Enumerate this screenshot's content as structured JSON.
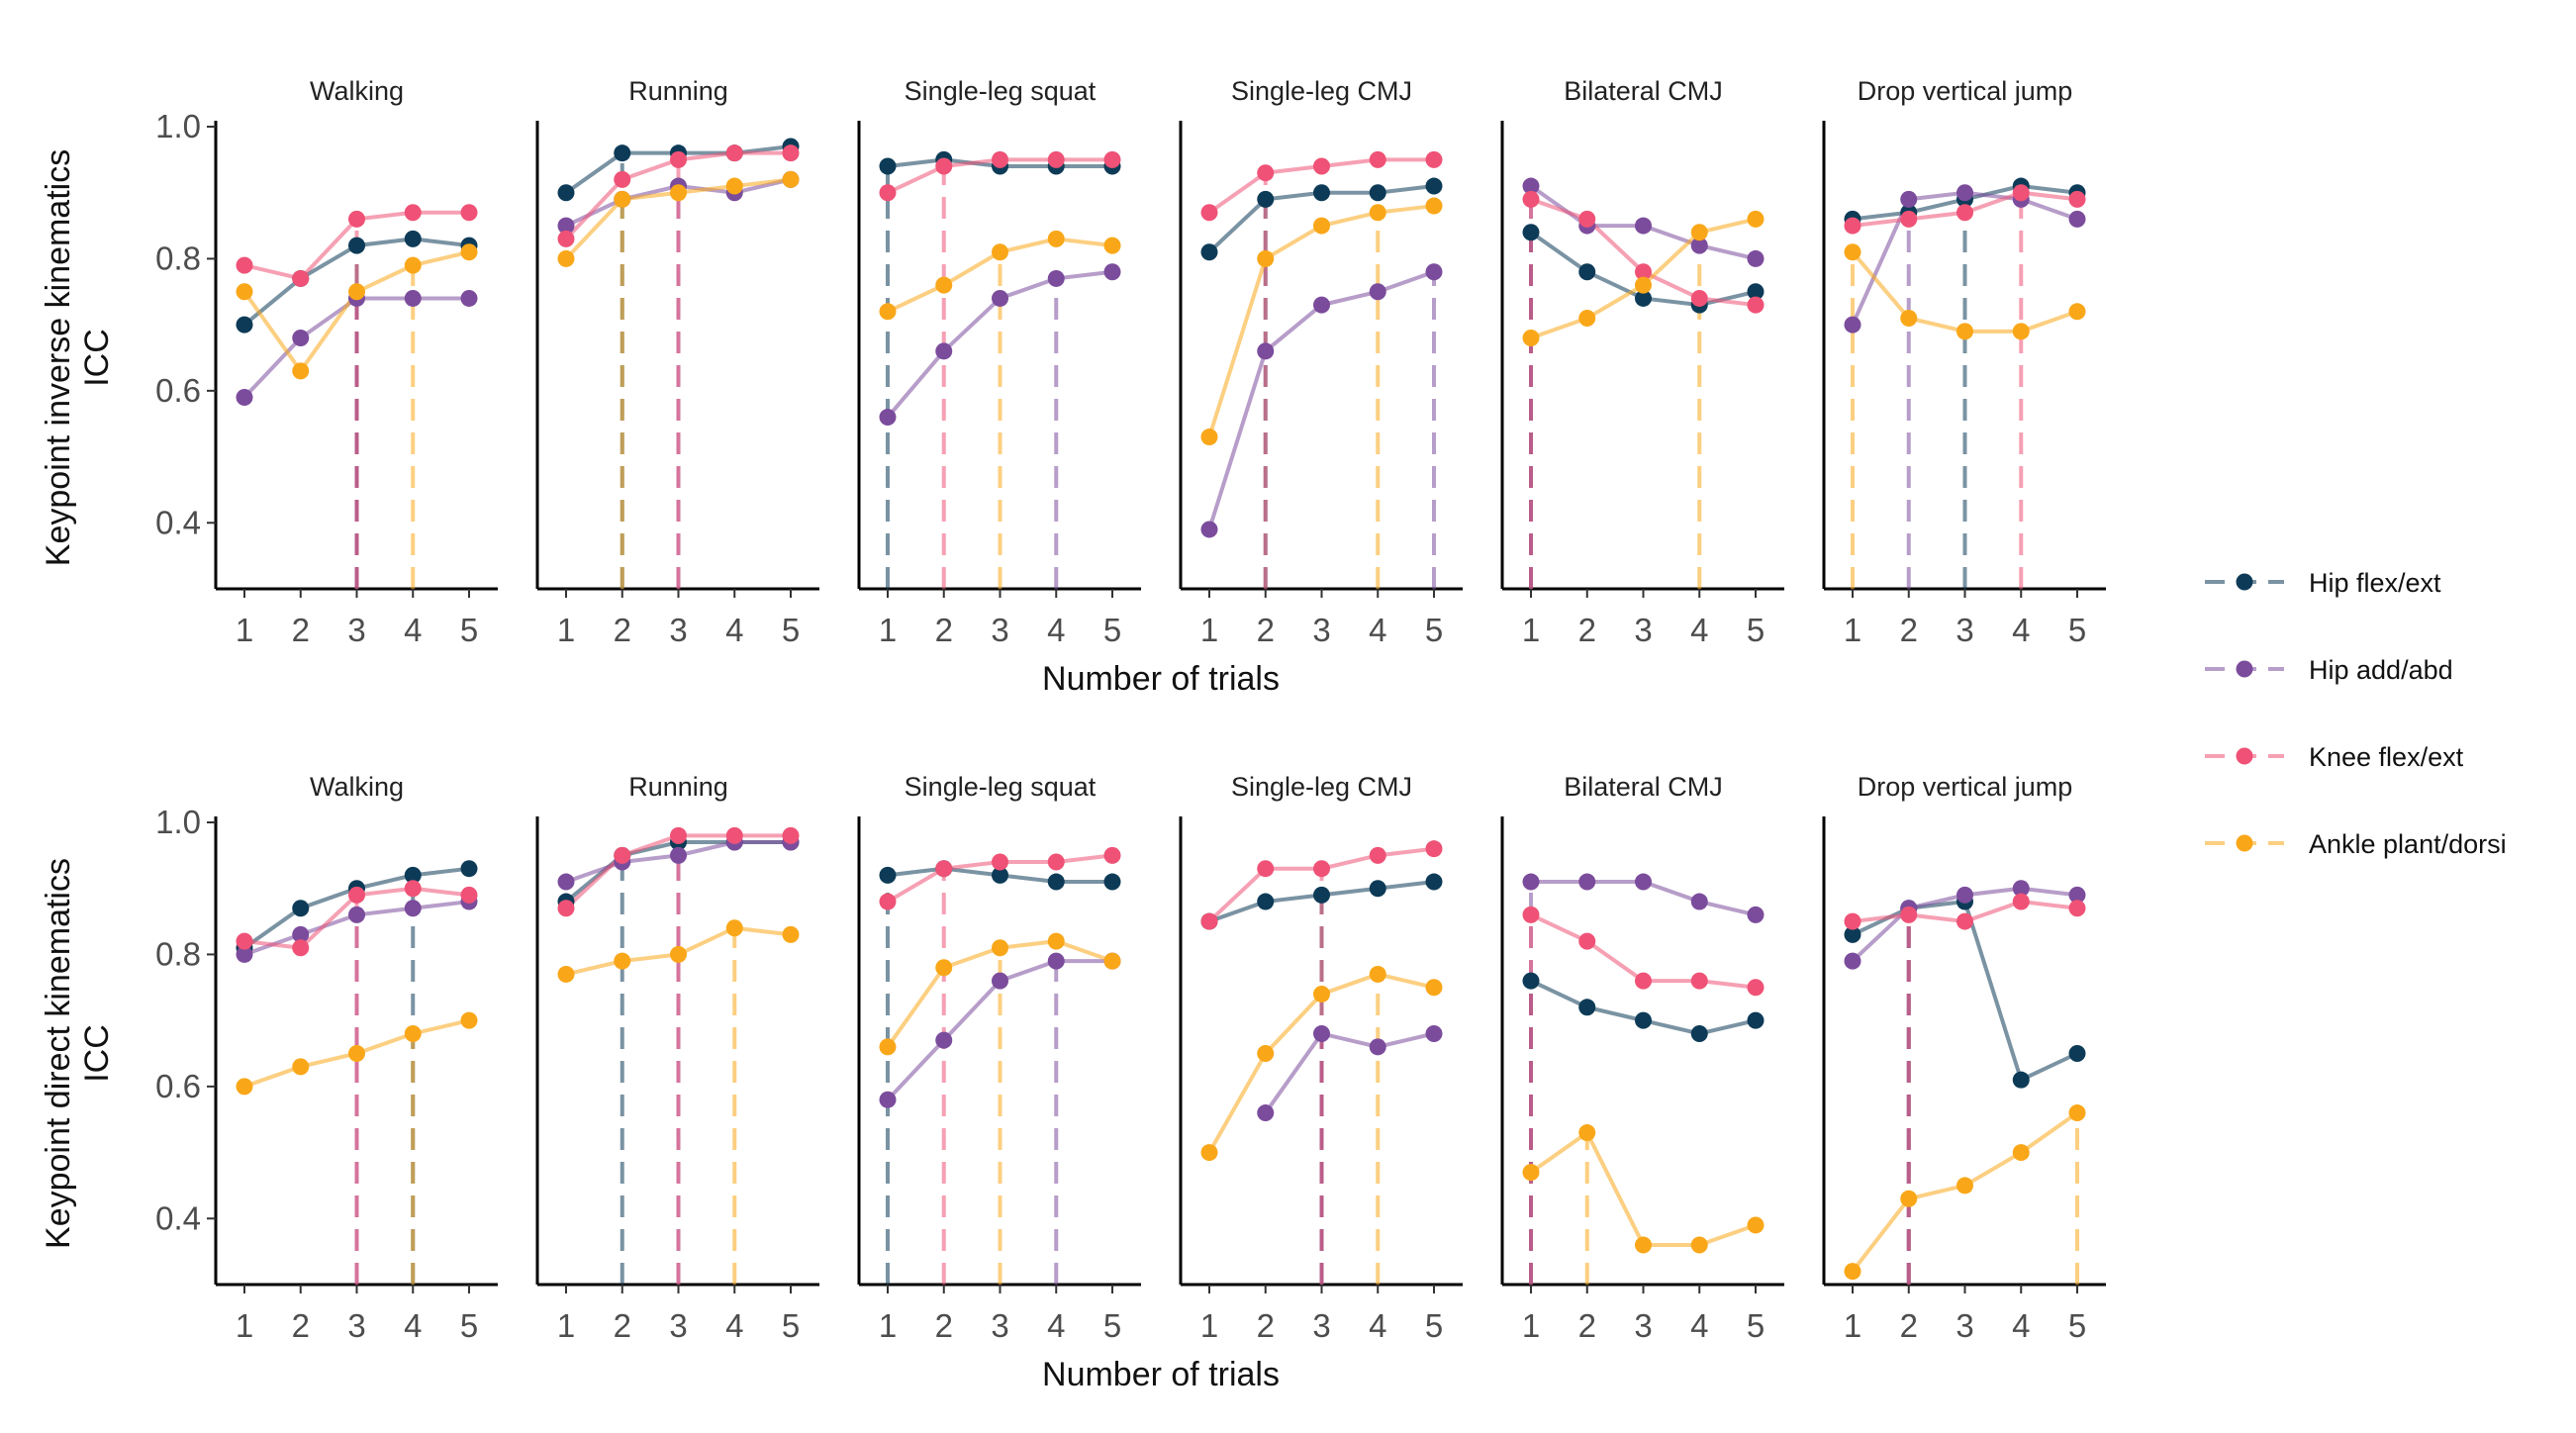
{
  "chart_data": {
    "type": "line",
    "panels": [
      "Walking",
      "Running",
      "Single-leg squat",
      "Single-leg CMJ",
      "Bilateral CMJ",
      "Drop vertical jump"
    ],
    "x": [
      1,
      2,
      3,
      4,
      5
    ],
    "xticks": [
      "1",
      "2",
      "3",
      "4",
      "5"
    ],
    "xlabel": "Number of trials",
    "ylim": [
      0.3,
      1.0
    ],
    "yticks": [
      "0.4",
      "0.6",
      "0.8",
      "1.0"
    ],
    "ytick_values": [
      0.4,
      0.6,
      0.8,
      1.0
    ],
    "grid": false,
    "legend_position": "right",
    "series_names": [
      "Hip flex/ext",
      "Hip add/abd",
      "Knee flex/ext",
      "Ankle plant/dorsi"
    ],
    "colors": {
      "Hip flex/ext": "#0d3b57",
      "Hip add/abd": "#7b4c9c",
      "Knee flex/ext": "#ef5276",
      "Ankle plant/dorsi": "#f9a719"
    },
    "rows": [
      {
        "ylabel": [
          "Keypoint inverse kinematics",
          "ICC"
        ],
        "panels": [
          {
            "title": "Walking",
            "series": [
              {
                "name": "Hip flex/ext",
                "values": [
                  0.7,
                  0.77,
                  0.82,
                  0.83,
                  0.82
                ],
                "threshold": 3
              },
              {
                "name": "Hip add/abd",
                "values": [
                  0.59,
                  0.68,
                  0.74,
                  0.74,
                  0.74
                ],
                "threshold": 3
              },
              {
                "name": "Knee flex/ext",
                "values": [
                  0.79,
                  0.77,
                  0.86,
                  0.87,
                  0.87
                ],
                "threshold": 3
              },
              {
                "name": "Ankle plant/dorsi",
                "values": [
                  0.75,
                  0.63,
                  0.75,
                  0.79,
                  0.81
                ],
                "threshold": 4
              }
            ]
          },
          {
            "title": "Running",
            "series": [
              {
                "name": "Hip flex/ext",
                "values": [
                  0.9,
                  0.96,
                  0.96,
                  0.96,
                  0.97
                ],
                "threshold": 2
              },
              {
                "name": "Hip add/abd",
                "values": [
                  0.85,
                  0.89,
                  0.91,
                  0.9,
                  0.92
                ],
                "threshold": 3
              },
              {
                "name": "Knee flex/ext",
                "values": [
                  0.83,
                  0.92,
                  0.95,
                  0.96,
                  0.96
                ],
                "threshold": 3
              },
              {
                "name": "Ankle plant/dorsi",
                "values": [
                  0.8,
                  0.89,
                  0.9,
                  0.91,
                  0.92
                ],
                "threshold": 2
              }
            ]
          },
          {
            "title": "Single-leg squat",
            "series": [
              {
                "name": "Hip flex/ext",
                "values": [
                  0.94,
                  0.95,
                  0.94,
                  0.94,
                  0.94
                ],
                "threshold": 1
              },
              {
                "name": "Hip add/abd",
                "values": [
                  0.56,
                  0.66,
                  0.74,
                  0.77,
                  0.78
                ],
                "threshold": 4
              },
              {
                "name": "Knee flex/ext",
                "values": [
                  0.9,
                  0.94,
                  0.95,
                  0.95,
                  0.95
                ],
                "threshold": 2
              },
              {
                "name": "Ankle plant/dorsi",
                "values": [
                  0.72,
                  0.76,
                  0.81,
                  0.83,
                  0.82
                ],
                "threshold": 3
              }
            ]
          },
          {
            "title": "Single-leg CMJ",
            "series": [
              {
                "name": "Hip flex/ext",
                "values": [
                  0.81,
                  0.89,
                  0.9,
                  0.9,
                  0.91
                ],
                "threshold": 2
              },
              {
                "name": "Hip add/abd",
                "values": [
                  0.39,
                  0.66,
                  0.73,
                  0.75,
                  0.78
                ],
                "threshold": 5
              },
              {
                "name": "Knee flex/ext",
                "values": [
                  0.87,
                  0.93,
                  0.94,
                  0.95,
                  0.95
                ],
                "threshold": 2
              },
              {
                "name": "Ankle plant/dorsi",
                "values": [
                  0.53,
                  0.8,
                  0.85,
                  0.87,
                  0.88
                ],
                "threshold": 4
              }
            ]
          },
          {
            "title": "Bilateral CMJ",
            "series": [
              {
                "name": "Hip flex/ext",
                "values": [
                  0.84,
                  0.78,
                  0.74,
                  0.73,
                  0.75
                ],
                "threshold": 1
              },
              {
                "name": "Hip add/abd",
                "values": [
                  0.91,
                  0.85,
                  0.85,
                  0.82,
                  0.8
                ],
                "threshold": 1
              },
              {
                "name": "Knee flex/ext",
                "values": [
                  0.89,
                  0.86,
                  0.78,
                  0.74,
                  0.73
                ],
                "threshold": 1
              },
              {
                "name": "Ankle plant/dorsi",
                "values": [
                  0.68,
                  0.71,
                  0.76,
                  0.84,
                  0.86
                ],
                "threshold": 4
              }
            ]
          },
          {
            "title": "Drop vertical jump",
            "series": [
              {
                "name": "Hip flex/ext",
                "values": [
                  0.86,
                  0.87,
                  0.89,
                  0.91,
                  0.9
                ],
                "threshold": 3
              },
              {
                "name": "Hip add/abd",
                "values": [
                  0.7,
                  0.89,
                  0.9,
                  0.89,
                  0.86
                ],
                "threshold": 2
              },
              {
                "name": "Knee flex/ext",
                "values": [
                  0.85,
                  0.86,
                  0.87,
                  0.9,
                  0.89
                ],
                "threshold": 4
              },
              {
                "name": "Ankle plant/dorsi",
                "values": [
                  0.81,
                  0.71,
                  0.69,
                  0.69,
                  0.72
                ],
                "threshold": 1
              }
            ]
          }
        ]
      },
      {
        "ylabel": [
          "Keypoint direct kinematics",
          "ICC"
        ],
        "panels": [
          {
            "title": "Walking",
            "series": [
              {
                "name": "Hip flex/ext",
                "values": [
                  0.81,
                  0.87,
                  0.9,
                  0.92,
                  0.93
                ],
                "threshold": 4
              },
              {
                "name": "Hip add/abd",
                "values": [
                  0.8,
                  0.83,
                  0.86,
                  0.87,
                  0.88
                ],
                "threshold": 3
              },
              {
                "name": "Knee flex/ext",
                "values": [
                  0.82,
                  0.81,
                  0.89,
                  0.9,
                  0.89
                ],
                "threshold": 3
              },
              {
                "name": "Ankle plant/dorsi",
                "values": [
                  0.6,
                  0.63,
                  0.65,
                  0.68,
                  0.7
                ],
                "threshold": 4
              }
            ]
          },
          {
            "title": "Running",
            "series": [
              {
                "name": "Hip flex/ext",
                "values": [
                  0.88,
                  0.95,
                  0.97,
                  0.97,
                  0.97
                ],
                "threshold": 2
              },
              {
                "name": "Hip add/abd",
                "values": [
                  0.91,
                  0.94,
                  0.95,
                  0.97,
                  0.97
                ],
                "threshold": 3
              },
              {
                "name": "Knee flex/ext",
                "values": [
                  0.87,
                  0.95,
                  0.98,
                  0.98,
                  0.98
                ],
                "threshold": 3
              },
              {
                "name": "Ankle plant/dorsi",
                "values": [
                  0.77,
                  0.79,
                  0.8,
                  0.84,
                  0.83
                ],
                "threshold": 4
              }
            ]
          },
          {
            "title": "Single-leg squat",
            "series": [
              {
                "name": "Hip flex/ext",
                "values": [
                  0.92,
                  0.93,
                  0.92,
                  0.91,
                  0.91
                ],
                "threshold": 1
              },
              {
                "name": "Hip add/abd",
                "values": [
                  0.58,
                  0.67,
                  0.76,
                  0.79,
                  0.79
                ],
                "threshold": 4
              },
              {
                "name": "Knee flex/ext",
                "values": [
                  0.88,
                  0.93,
                  0.94,
                  0.94,
                  0.95
                ],
                "threshold": 2
              },
              {
                "name": "Ankle plant/dorsi",
                "values": [
                  0.66,
                  0.78,
                  0.81,
                  0.82,
                  0.79
                ],
                "threshold": 3
              }
            ]
          },
          {
            "title": "Single-leg CMJ",
            "series": [
              {
                "name": "Hip flex/ext",
                "values": [
                  0.85,
                  0.88,
                  0.89,
                  0.9,
                  0.91
                ],
                "threshold": 3
              },
              {
                "name": "Hip add/abd",
                "values": [
                  null,
                  0.56,
                  0.68,
                  0.66,
                  0.68
                ],
                "threshold": 3
              },
              {
                "name": "Knee flex/ext",
                "values": [
                  0.85,
                  0.93,
                  0.93,
                  0.95,
                  0.96
                ],
                "threshold": 3
              },
              {
                "name": "Ankle plant/dorsi",
                "values": [
                  0.5,
                  0.65,
                  0.74,
                  0.77,
                  0.75
                ],
                "threshold": 4
              }
            ]
          },
          {
            "title": "Bilateral CMJ",
            "series": [
              {
                "name": "Hip flex/ext",
                "values": [
                  0.76,
                  0.72,
                  0.7,
                  0.68,
                  0.7
                ],
                "threshold": 1
              },
              {
                "name": "Hip add/abd",
                "values": [
                  0.91,
                  0.91,
                  0.91,
                  0.88,
                  0.86
                ],
                "threshold": 1
              },
              {
                "name": "Knee flex/ext",
                "values": [
                  0.86,
                  0.82,
                  0.76,
                  0.76,
                  0.75
                ],
                "threshold": 1
              },
              {
                "name": "Ankle plant/dorsi",
                "values": [
                  0.47,
                  0.53,
                  0.36,
                  0.36,
                  0.39
                ],
                "threshold": 2
              }
            ]
          },
          {
            "title": "Drop vertical jump",
            "series": [
              {
                "name": "Hip flex/ext",
                "values": [
                  0.83,
                  0.87,
                  0.88,
                  0.61,
                  0.65
                ],
                "threshold": 2
              },
              {
                "name": "Hip add/abd",
                "values": [
                  0.79,
                  0.87,
                  0.89,
                  0.9,
                  0.89
                ],
                "threshold": 2
              },
              {
                "name": "Knee flex/ext",
                "values": [
                  0.85,
                  0.86,
                  0.85,
                  0.88,
                  0.87
                ],
                "threshold": 2
              },
              {
                "name": "Ankle plant/dorsi",
                "values": [
                  0.32,
                  0.43,
                  0.45,
                  0.5,
                  0.56
                ],
                "threshold": 5
              }
            ]
          }
        ]
      }
    ]
  }
}
